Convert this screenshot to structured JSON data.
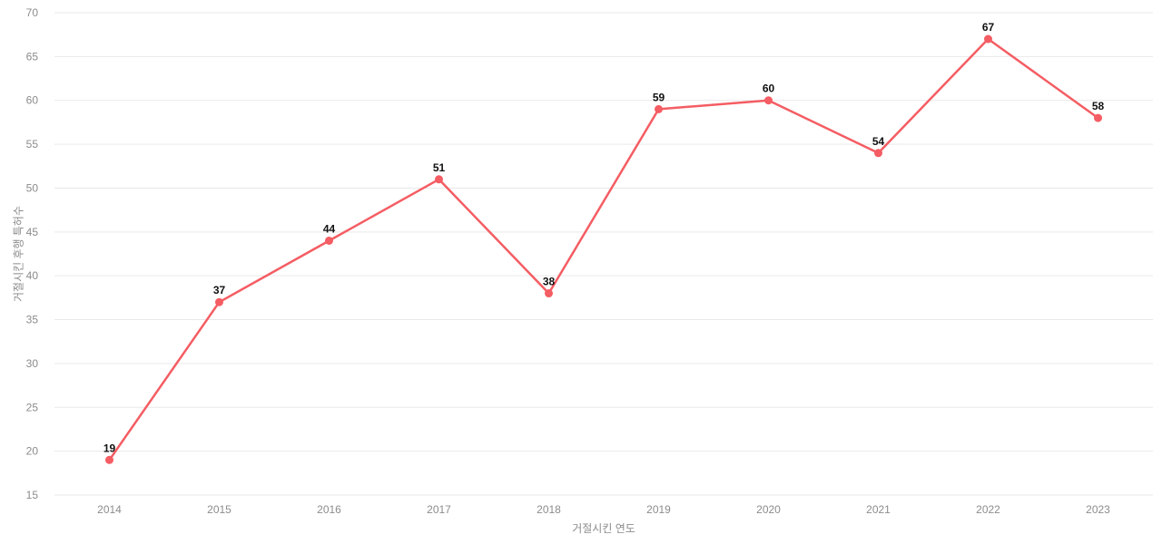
{
  "chart_data": {
    "type": "line",
    "title": "",
    "xlabel": "거절시킨 연도",
    "ylabel": "거절시킨 후행 특허수",
    "categories": [
      "2014",
      "2015",
      "2016",
      "2017",
      "2018",
      "2019",
      "2020",
      "2021",
      "2022",
      "2023"
    ],
    "series": [
      {
        "name": "거절시킨 후행 특허수",
        "values": [
          19,
          37,
          44,
          51,
          38,
          59,
          60,
          54,
          67,
          58
        ]
      }
    ],
    "ylim": [
      15,
      70
    ],
    "yticks": [
      15,
      20,
      25,
      30,
      35,
      40,
      45,
      50,
      55,
      60,
      65,
      70
    ],
    "grid": "horizontal",
    "legend_position": "none",
    "point_labels_visible": true,
    "colors": {
      "line": "#f45d63",
      "point": "#f45d63",
      "grid": "#e9e9e9",
      "tick_text": "#8c8c8c",
      "point_label_text": "#111111",
      "background": "#ffffff"
    }
  }
}
